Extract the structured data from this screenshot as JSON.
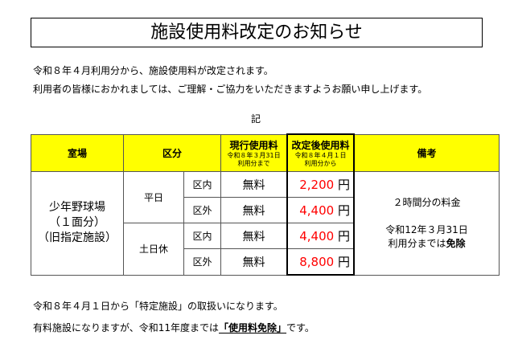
{
  "title": "施設使用料改定のお知らせ",
  "intro": [
    "令和８年４月利用分から、施設使用料が改定されます。",
    "利用者の皆様におかれましては、ご理解・ご協力をいただきますようお願い申し上げます。"
  ],
  "ki": "記",
  "table": {
    "headers": {
      "room": "室場",
      "category": "区分",
      "current": "現行使用料",
      "current_note1": "令和８年３月31日",
      "current_note2": "利用分まで",
      "new": "改定後使用料",
      "new_note1": "令和８年４月１日",
      "new_note2": "利用分から",
      "remarks": "備考"
    },
    "room": [
      "少年野球場",
      "（１面分）",
      "（旧指定施設）"
    ],
    "groups": [
      "平日",
      "土日休"
    ],
    "rows": [
      {
        "area": "区内",
        "current": "無料",
        "new": "2,200",
        "unit": "円"
      },
      {
        "area": "区外",
        "current": "無料",
        "new": "4,400",
        "unit": "円"
      },
      {
        "area": "区内",
        "current": "無料",
        "new": "4,400",
        "unit": "円"
      },
      {
        "area": "区外",
        "current": "無料",
        "new": "8,800",
        "unit": "円"
      }
    ],
    "remarks1": "２時間分の料金",
    "remarks2": "令和12年３月31日",
    "remarks3a": "利用分までは",
    "remarks3b": "免除"
  },
  "footer": {
    "line1": "令和８年４月１日から「特定施設」の取扱いになります。",
    "line2a": "有料施設になりますが、令和11年度までは",
    "line2b": "「使用料免除」",
    "line2c": "です。"
  }
}
